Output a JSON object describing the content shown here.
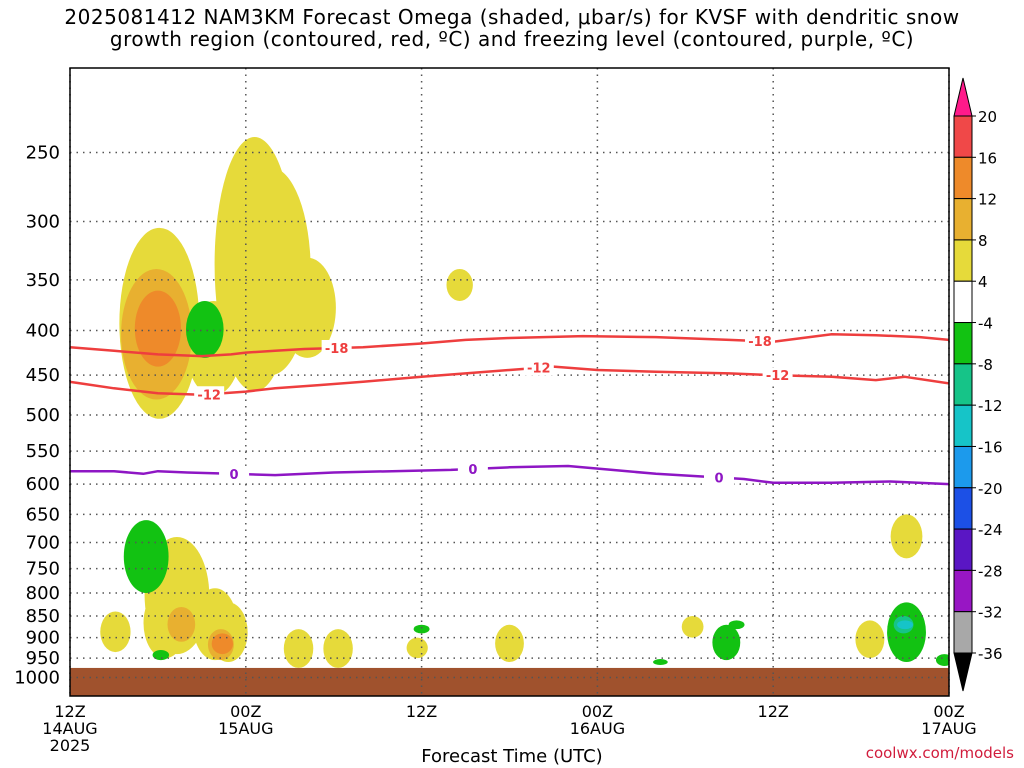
{
  "title": {
    "line1": "2025081412 NAM3KM Forecast Omega (shaded, μbar/s) for KVSF with dendritic snow",
    "line2": "growth region (contoured, red, ºC) and freezing level (contoured, purple, ºC)"
  },
  "credit": "coolwx.com/models",
  "chart_data": {
    "type": "heatmap",
    "title": "2025081412 NAM3KM Forecast Omega (shaded, μbar/s) for KVSF with dendritic snow growth region (contoured, red, ºC) and freezing level (contoured, purple, ºC)",
    "xlabel": "Forecast Time (UTC)",
    "ylabel": "",
    "x_range_hours": [
      0,
      60
    ],
    "x_ticks": [
      {
        "hour": 0,
        "lines": [
          "12Z",
          "14AUG",
          "2025"
        ]
      },
      {
        "hour": 12,
        "lines": [
          "00Z",
          "15AUG"
        ]
      },
      {
        "hour": 24,
        "lines": [
          "12Z"
        ]
      },
      {
        "hour": 36,
        "lines": [
          "00Z",
          "16AUG"
        ]
      },
      {
        "hour": 48,
        "lines": [
          "12Z"
        ]
      },
      {
        "hour": 60,
        "lines": [
          "00Z",
          "17AUG"
        ]
      }
    ],
    "y_scale": "log",
    "y_range_hPa": [
      1050,
      200
    ],
    "y_ticks": [
      250,
      300,
      350,
      400,
      450,
      500,
      550,
      600,
      650,
      700,
      750,
      800,
      850,
      900,
      950,
      1000
    ],
    "grid": true,
    "surface_pressure_hPa": 975,
    "colorbar": {
      "levels": [
        20,
        16,
        12,
        8,
        4,
        -4,
        -8,
        -12,
        -16,
        -20,
        -24,
        -28,
        -32,
        -36
      ],
      "colors": [
        "#ff1a8a",
        "#f04848",
        "#ee8a2a",
        "#e8b030",
        "#e6da3a",
        "#ffffff",
        "#12c212",
        "#16c488",
        "#16c4c8",
        "#1c9aec",
        "#1c50e6",
        "#5a16c4",
        "#9816c4",
        "#a8a8a8",
        "#000000"
      ]
    },
    "contours": [
      {
        "label": "-18",
        "color": "#ee3e3e",
        "points": [
          [
            0,
            418
          ],
          [
            3,
            422
          ],
          [
            6,
            426
          ],
          [
            9,
            428
          ],
          [
            11,
            426
          ],
          [
            12,
            424
          ],
          [
            14,
            422
          ],
          [
            16,
            420
          ],
          [
            20,
            418
          ],
          [
            24,
            414
          ],
          [
            27,
            410
          ],
          [
            30,
            408
          ],
          [
            35,
            406
          ],
          [
            40,
            407
          ],
          [
            45,
            410
          ],
          [
            48,
            412
          ],
          [
            50,
            408
          ],
          [
            52,
            404
          ],
          [
            55,
            405
          ],
          [
            58,
            407
          ],
          [
            60,
            410
          ]
        ],
        "labels_at": [
          18.2,
          47.1
        ]
      },
      {
        "label": "-12",
        "color": "#ee3e3e",
        "points": [
          [
            0,
            458
          ],
          [
            3,
            466
          ],
          [
            6,
            472
          ],
          [
            9,
            474
          ],
          [
            12,
            470
          ],
          [
            14,
            466
          ],
          [
            17,
            462
          ],
          [
            20,
            458
          ],
          [
            24,
            452
          ],
          [
            27,
            448
          ],
          [
            30,
            444
          ],
          [
            33,
            440
          ],
          [
            36,
            444
          ],
          [
            40,
            446
          ],
          [
            45,
            448
          ],
          [
            48,
            450
          ],
          [
            52,
            452
          ],
          [
            55,
            456
          ],
          [
            57,
            452
          ],
          [
            60,
            460
          ]
        ],
        "labels_at": [
          9.5,
          32.0,
          48.3
        ]
      },
      {
        "label": "0",
        "color": "#8e16c4",
        "points": [
          [
            0,
            580
          ],
          [
            3,
            580
          ],
          [
            5,
            584
          ],
          [
            6,
            580
          ],
          [
            8,
            582
          ],
          [
            11,
            584
          ],
          [
            14,
            586
          ],
          [
            18,
            582
          ],
          [
            22,
            580
          ],
          [
            26,
            578
          ],
          [
            30,
            574
          ],
          [
            34,
            572
          ],
          [
            37,
            578
          ],
          [
            40,
            584
          ],
          [
            43,
            588
          ],
          [
            46,
            592
          ],
          [
            48,
            598
          ],
          [
            52,
            598
          ],
          [
            56,
            596
          ],
          [
            60,
            600
          ]
        ],
        "labels_at": [
          11.2,
          27.5,
          44.3
        ]
      }
    ],
    "shaded_regions": [
      {
        "label": "omega 4 to 8",
        "color": "#e6da3a",
        "blobs": [
          [
            6.1,
            505,
            305
          ],
          [
            9.8,
            475,
            370
          ],
          [
            12.6,
            470,
            240
          ],
          [
            13.7,
            450,
            260
          ],
          [
            16.2,
            430,
            330
          ],
          [
            26.6,
            370,
            340
          ],
          [
            3.1,
            935,
            840
          ],
          [
            6.5,
            950,
            790
          ],
          [
            7.3,
            940,
            690
          ],
          [
            9.9,
            955,
            790
          ],
          [
            10.8,
            960,
            820
          ],
          [
            15.6,
            975,
            880
          ],
          [
            18.3,
            975,
            880
          ],
          [
            23.7,
            950,
            900
          ],
          [
            30.0,
            960,
            870
          ],
          [
            42.5,
            900,
            850
          ],
          [
            54.6,
            950,
            860
          ],
          [
            57.1,
            730,
            650
          ]
        ]
      },
      {
        "label": "omega 8 to 12",
        "color": "#e8b030",
        "blobs": [
          [
            5.9,
            480,
            340
          ],
          [
            7.6,
            910,
            830
          ],
          [
            10.3,
            955,
            880
          ]
        ]
      },
      {
        "label": "omega 12 to 16",
        "color": "#ee8a2a",
        "blobs": [
          [
            6.0,
            440,
            360
          ],
          [
            10.4,
            940,
            890
          ]
        ]
      },
      {
        "label": "omega -4 to -8",
        "color": "#12c212",
        "blobs": [
          [
            5.2,
            800,
            660
          ],
          [
            6.2,
            955,
            930
          ],
          [
            9.2,
            430,
            370
          ],
          [
            24.0,
            890,
            870
          ],
          [
            40.3,
            960,
            960
          ],
          [
            44.8,
            955,
            870
          ],
          [
            45.5,
            880,
            860
          ],
          [
            57.1,
            960,
            820
          ],
          [
            59.7,
            970,
            940
          ]
        ]
      },
      {
        "label": "omega -8 to -12",
        "color": "#16c488",
        "blobs": [
          [
            56.9,
            890,
            850
          ]
        ]
      },
      {
        "label": "omega -12 to -16",
        "color": "#16c4c8",
        "blobs": [
          [
            57.0,
            880,
            860
          ]
        ]
      }
    ]
  }
}
